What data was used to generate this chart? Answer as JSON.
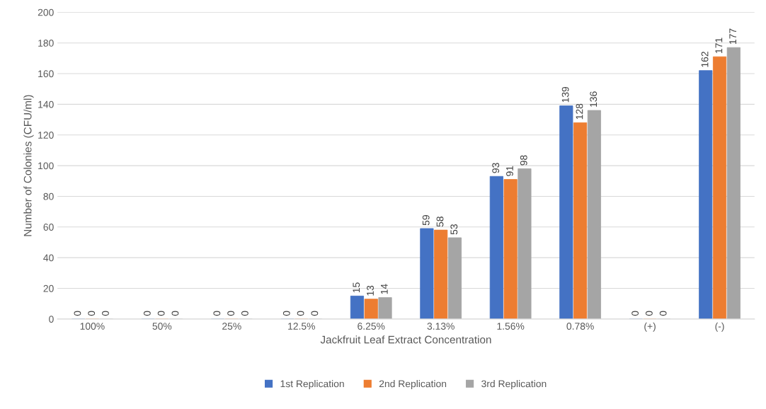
{
  "chart_data": {
    "type": "bar",
    "xlabel": "Jackfruit Leaf Extract Concentration",
    "ylabel": "Number of Colonies (CFU/ml)",
    "categories": [
      "100%",
      "50%",
      "25%",
      "12.5%",
      "6.25%",
      "3.13%",
      "1.56%",
      "0.78%",
      "(+)",
      "(-)"
    ],
    "series": [
      {
        "name": "1st Replication",
        "color": "#4472c4",
        "values": [
          0,
          0,
          0,
          0,
          15,
          59,
          93,
          139,
          0,
          162
        ]
      },
      {
        "name": "2nd Replication",
        "color": "#ed7d31",
        "values": [
          0,
          0,
          0,
          0,
          13,
          58,
          91,
          128,
          0,
          171
        ]
      },
      {
        "name": "3rd Replication",
        "color": "#a5a5a5",
        "values": [
          0,
          0,
          0,
          0,
          14,
          53,
          98,
          136,
          0,
          177
        ]
      }
    ],
    "ylim": [
      0,
      200
    ],
    "yticks": [
      0,
      20,
      40,
      60,
      80,
      100,
      120,
      140,
      160,
      180,
      200
    ],
    "grid": "y",
    "legend": "bottom",
    "data_labels": true
  }
}
